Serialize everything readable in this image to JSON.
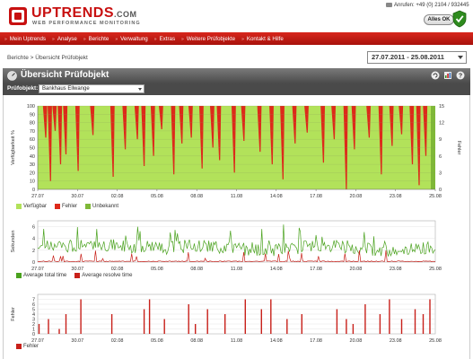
{
  "header": {
    "logo_text": "UPTRENDS",
    "logo_suffix": ".COM",
    "logo_tagline": "WEB PERFORMANCE MONITORING",
    "phone": "Anrufen: +49 (0) 2104 / 932445",
    "status_button": "Alles OK",
    "colors": {
      "brand_red": "#c81010",
      "ok_green": "#2e8b1e"
    }
  },
  "nav": {
    "items": [
      "Mein Uptrends",
      "Analyse",
      "Berichte",
      "Verwaltung",
      "Extras",
      "Weitere Prüfobjekte",
      "Kontakt & Hilfe"
    ]
  },
  "breadcrumb": {
    "items": [
      "Berichte",
      "Übersicht Prüfobjekt"
    ],
    "separator": ">"
  },
  "date_range": {
    "value": "27.07.2011 - 25.08.2011"
  },
  "panel": {
    "title": "Übersicht Prüfobjekt",
    "probe_label": "Prüfobjekt:",
    "probe_value": "Bankhaus Ellwange",
    "icons": [
      "refresh-icon",
      "export-icon",
      "help-icon"
    ]
  },
  "chart_data": [
    {
      "type": "area",
      "ylabel": "Verfügbarkeit %",
      "y2label": "Fehler",
      "ylim": [
        0,
        100
      ],
      "y2lim": [
        0,
        15
      ],
      "yticks": [
        0,
        10,
        20,
        30,
        40,
        50,
        60,
        70,
        80,
        90,
        100
      ],
      "y2ticks": [
        0,
        3,
        6,
        9,
        12,
        15
      ],
      "xticks": [
        "27.07",
        "30.07",
        "02.08",
        "05.08",
        "08.08",
        "11.08",
        "14.08",
        "17.08",
        "20.08",
        "23.08",
        "25.08"
      ],
      "x_range": [
        0,
        29.5
      ],
      "series": [
        {
          "name": "Verfügbar",
          "color": "#b2e25a",
          "values": "100% except dips below"
        },
        {
          "name": "Fehler",
          "color": "#dd2a1a"
        },
        {
          "name": "Unbekannt",
          "color": "#7fb838"
        }
      ],
      "dips": [
        [
          0.6,
          62
        ],
        [
          0.95,
          10
        ],
        [
          1.3,
          70
        ],
        [
          1.7,
          30
        ],
        [
          2.1,
          42
        ],
        [
          3.0,
          22
        ],
        [
          4.1,
          65
        ],
        [
          5.6,
          15
        ],
        [
          6.5,
          48
        ],
        [
          7.4,
          60
        ],
        [
          7.9,
          28
        ],
        [
          8.6,
          40
        ],
        [
          9.2,
          72
        ],
        [
          10.1,
          18
        ],
        [
          10.7,
          55
        ],
        [
          11.4,
          62
        ],
        [
          12.2,
          25
        ],
        [
          13.0,
          50
        ],
        [
          13.5,
          35
        ],
        [
          14.6,
          20
        ],
        [
          15.3,
          58
        ],
        [
          16.5,
          45
        ],
        [
          17.4,
          30
        ],
        [
          18.2,
          12
        ],
        [
          19.1,
          55
        ],
        [
          20.0,
          68
        ],
        [
          21.2,
          32
        ],
        [
          22.0,
          60
        ],
        [
          22.9,
          0
        ],
        [
          23.5,
          48
        ],
        [
          24.6,
          62
        ],
        [
          25.5,
          18
        ],
        [
          26.3,
          52
        ],
        [
          27.0,
          66
        ],
        [
          27.8,
          30
        ],
        [
          28.3,
          5
        ],
        [
          28.8,
          40
        ]
      ]
    },
    {
      "type": "line",
      "ylabel": "Sekunden",
      "ylim": [
        0,
        7
      ],
      "yticks": [
        0,
        2,
        4,
        6
      ],
      "xticks": [
        "27.07",
        "30.07",
        "02.08",
        "05.08",
        "08.08",
        "11.08",
        "14.08",
        "17.08",
        "20.08",
        "23.08",
        "25.08"
      ],
      "series": [
        {
          "name": "Average total time",
          "color": "#4aa21e"
        },
        {
          "name": "Average resolve time",
          "color": "#c8201a"
        }
      ]
    },
    {
      "type": "bar",
      "ylabel": "Fehler",
      "ylim": [
        0,
        8
      ],
      "yticks": [
        0,
        1,
        2,
        3,
        4,
        5,
        6,
        7
      ],
      "xticks": [
        "27.07",
        "30.07",
        "02.08",
        "05.08",
        "08.08",
        "11.08",
        "14.08",
        "17.08",
        "20.08",
        "23.08",
        "25.08"
      ],
      "series": [
        {
          "name": "Fehler",
          "color": "#c8201a"
        }
      ],
      "x": [
        0.1,
        0.8,
        1.6,
        2.1,
        3.2,
        5.5,
        7.9,
        8.3,
        9.4,
        11.2,
        11.7,
        12.6,
        13.9,
        15.4,
        16.6,
        17.3,
        18.5,
        19.6,
        22.2,
        22.9,
        23.4,
        24.3,
        25.4,
        26.1,
        27.0,
        28.0,
        28.6,
        29.1
      ],
      "values": [
        2,
        3,
        1,
        4,
        7,
        4,
        5,
        7,
        3,
        6,
        2,
        5,
        4,
        7,
        5,
        7,
        3,
        4,
        5,
        3,
        2,
        6,
        4,
        7,
        3,
        5,
        4,
        7
      ]
    }
  ]
}
